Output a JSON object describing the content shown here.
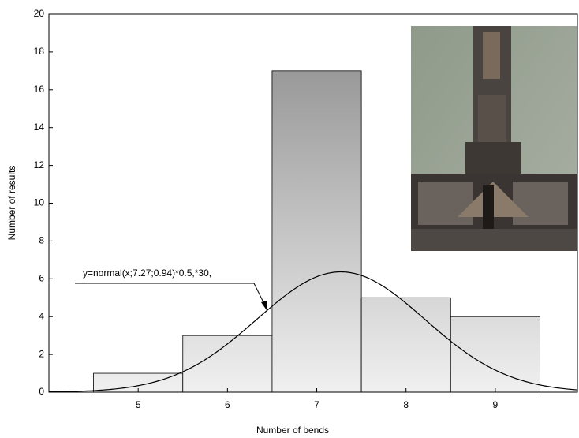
{
  "chart_data": {
    "type": "histogram",
    "x_label": "Number of bends",
    "y_label": "Number of results",
    "bins": [
      4.5,
      5.5,
      6.5,
      7.5,
      8.5,
      9.5
    ],
    "values": [
      1,
      3,
      17,
      5,
      4
    ],
    "xlim": [
      4,
      9.92
    ],
    "ylim": [
      0,
      20
    ],
    "xticks": [
      5,
      6,
      7,
      8,
      9
    ],
    "yticks": [
      0,
      2,
      4,
      6,
      8,
      10,
      12,
      14,
      16,
      18,
      20
    ],
    "fit": {
      "label": "y=normal(x;7.27;0.94)*0.5,*30,",
      "mean": 7.27,
      "sd": 0.94,
      "factor": 0.5,
      "n": 30
    }
  }
}
